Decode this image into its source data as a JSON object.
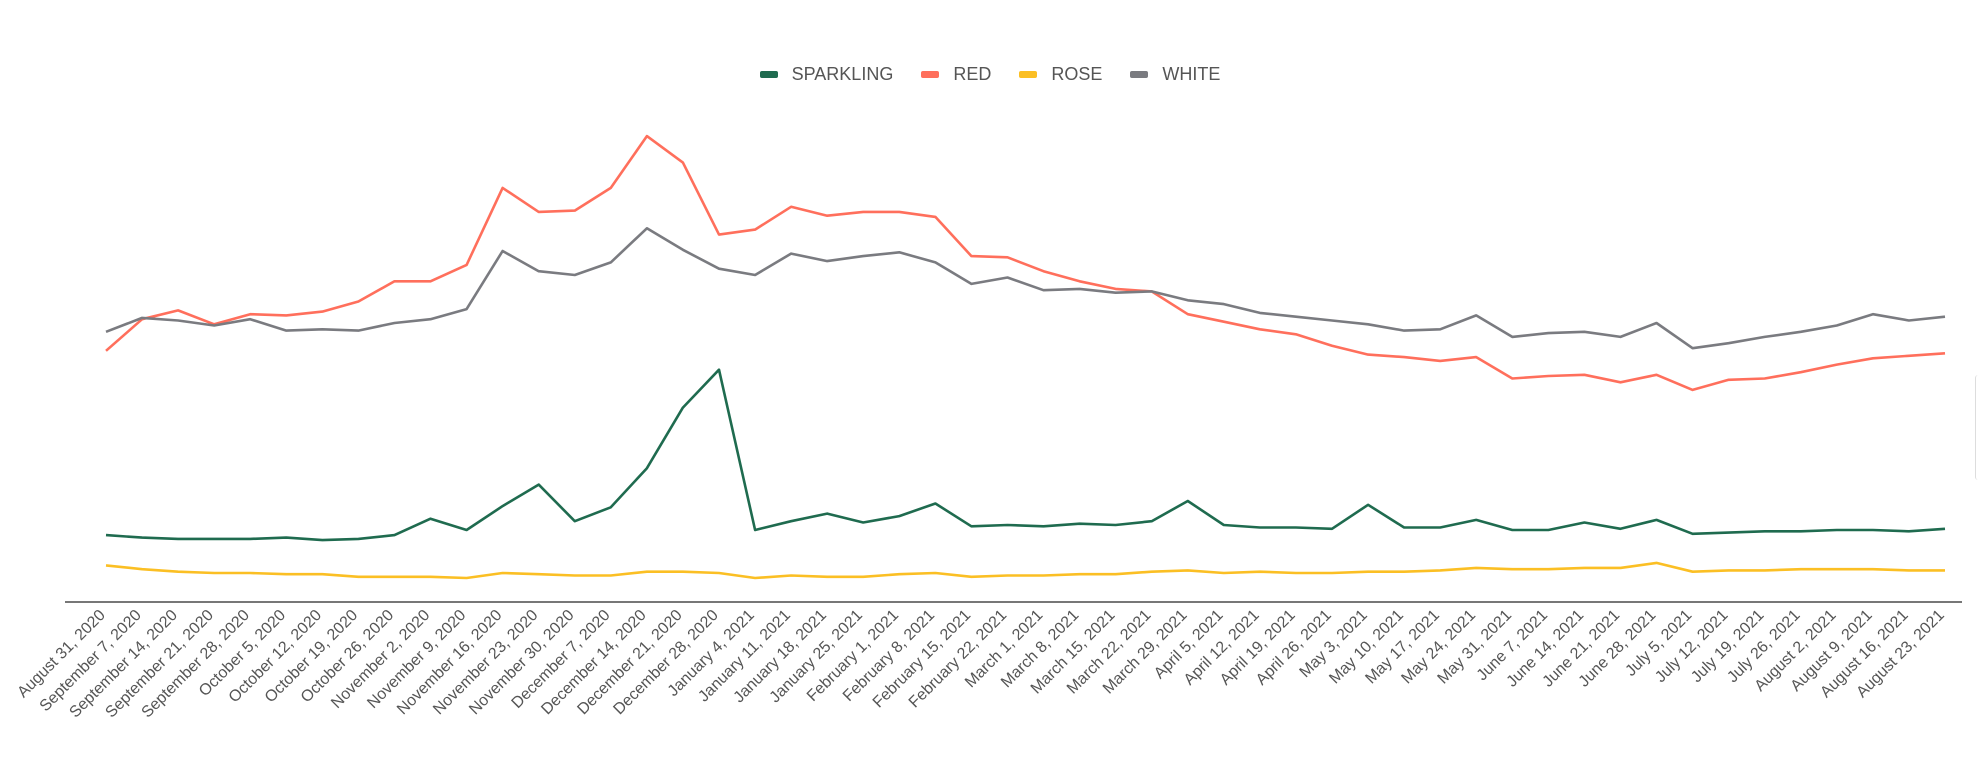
{
  "chart_data": {
    "type": "line",
    "title": "",
    "xlabel": "",
    "ylabel": "",
    "ylim": [
      0,
      400
    ],
    "grid": false,
    "legend_position": "top",
    "x": [
      "August 31, 2020",
      "September 7, 2020",
      "September 14, 2020",
      "September 21, 2020",
      "September 28, 2020",
      "October 5, 2020",
      "October 12, 2020",
      "October 19, 2020",
      "October 26, 2020",
      "November 2, 2020",
      "November 9, 2020",
      "November 16, 2020",
      "November 23, 2020",
      "November 30, 2020",
      "December 7, 2020",
      "December 14, 2020",
      "December 21, 2020",
      "December 28, 2020",
      "January 4, 2021",
      "January 11, 2021",
      "January 18, 2021",
      "January 25, 2021",
      "February 1, 2021",
      "February 8, 2021",
      "February 15, 2021",
      "February 22, 2021",
      "March 1, 2021",
      "March 8, 2021",
      "March 15, 2021",
      "March 22, 2021",
      "March 29, 2021",
      "April 5, 2021",
      "April 12, 2021",
      "April 19, 2021",
      "April 26, 2021",
      "May 3, 2021",
      "May 10, 2021",
      "May 17, 2021",
      "May 24, 2021",
      "May 31, 2021",
      "June 7, 2021",
      "June 14, 2021",
      "June 21, 2021",
      "June 28, 2021",
      "July 5, 2021",
      "July 12, 2021",
      "July 19, 2021",
      "July 26, 2021",
      "August 2, 2021",
      "August 9, 2021",
      "August 16, 2021",
      "August 23, 2021"
    ],
    "series": [
      {
        "name": "SPARKLING",
        "color": "#1f6b4f",
        "values": [
          53,
          51,
          50,
          50,
          50,
          51,
          49,
          50,
          53,
          66,
          57,
          76,
          93,
          64,
          75,
          106,
          154,
          184,
          57,
          64,
          70,
          63,
          68,
          78,
          60,
          61,
          60,
          62,
          61,
          64,
          80,
          61,
          59,
          59,
          58,
          77,
          59,
          59,
          65,
          57,
          57,
          63,
          58,
          65,
          54,
          55,
          56,
          56,
          57,
          57,
          56,
          58
        ]
      },
      {
        "name": "RED",
        "color": "#ff6f5c",
        "values": [
          199,
          224,
          231,
          220,
          228,
          227,
          230,
          238,
          254,
          254,
          267,
          328,
          309,
          310,
          328,
          369,
          348,
          291,
          295,
          313,
          306,
          309,
          309,
          305,
          274,
          273,
          262,
          254,
          248,
          246,
          228,
          222,
          216,
          212,
          203,
          196,
          194,
          191,
          194,
          177,
          179,
          180,
          174,
          180,
          168,
          176,
          177,
          182,
          188,
          193,
          195,
          197
        ]
      },
      {
        "name": "ROSE",
        "color": "#fbbf24",
        "values": [
          29,
          26,
          24,
          23,
          23,
          22,
          22,
          20,
          20,
          20,
          19,
          23,
          22,
          21,
          21,
          24,
          24,
          23,
          19,
          21,
          20,
          20,
          22,
          23,
          20,
          21,
          21,
          22,
          22,
          24,
          25,
          23,
          24,
          23,
          23,
          24,
          24,
          25,
          27,
          26,
          26,
          27,
          27,
          31,
          24,
          25,
          25,
          26,
          26,
          26,
          25,
          25
        ]
      },
      {
        "name": "WHITE",
        "color": "#7a7b80",
        "values": [
          214,
          225,
          223,
          219,
          224,
          215,
          216,
          215,
          221,
          224,
          232,
          278,
          262,
          259,
          269,
          296,
          279,
          264,
          259,
          276,
          270,
          274,
          277,
          269,
          252,
          257,
          247,
          248,
          245,
          246,
          239,
          236,
          229,
          226,
          223,
          220,
          215,
          216,
          227,
          210,
          213,
          214,
          210,
          221,
          201,
          205,
          210,
          214,
          219,
          228,
          223,
          226
        ]
      }
    ]
  }
}
